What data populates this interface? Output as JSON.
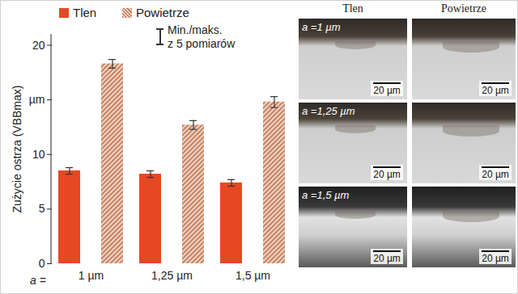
{
  "chart_data": {
    "type": "bar",
    "ylabel": "Zużycie ostrza (VBBmax)",
    "xlabel": "a =",
    "categories": [
      "1 µm",
      "1,25 µm",
      "1,5 µm"
    ],
    "series": [
      {
        "name": "Tlen",
        "color": "#e64823",
        "values": [
          8.5,
          8.2,
          7.4
        ],
        "error_min": [
          8.2,
          7.9,
          7.1
        ],
        "error_max": [
          8.8,
          8.5,
          7.7
        ]
      },
      {
        "name": "Powietrze",
        "color": "#c9825f",
        "values": [
          18.3,
          12.7,
          14.8
        ],
        "error_min": [
          17.9,
          12.3,
          14.3
        ],
        "error_max": [
          18.7,
          13.1,
          15.3
        ]
      }
    ],
    "error_bar_legend": [
      "Min./maks.",
      "z 5 pomiarów"
    ],
    "ylim": [
      0,
      21
    ],
    "yticks": [
      0,
      5,
      10,
      {
        "value": 15,
        "label": "µm"
      },
      20
    ],
    "grid": false,
    "legend": "top"
  },
  "micrographs": {
    "columns": [
      "Tlen",
      "Powietrze"
    ],
    "rows": [
      "a =1 µm",
      "a =1,25 µm",
      "a =1,5 µm"
    ],
    "scale_bar": "20 µm"
  }
}
